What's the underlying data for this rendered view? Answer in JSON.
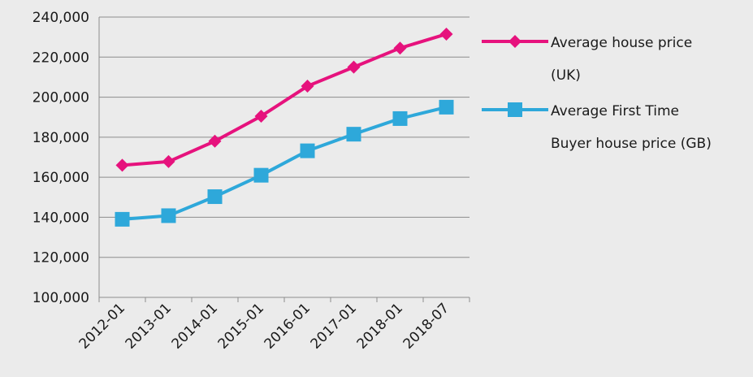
{
  "chart_data": {
    "type": "line",
    "title": "",
    "xlabel": "",
    "ylabel": "",
    "categories": [
      "2012-01",
      "2013-01",
      "2014-01",
      "2015-01",
      "2016-01",
      "2017-01",
      "2018-01",
      "2018-07"
    ],
    "ylim": [
      100000,
      240000
    ],
    "yticks": [
      "100,000",
      "120,000",
      "140,000",
      "160,000",
      "180,000",
      "200,000",
      "220,000",
      "240,000"
    ],
    "grid": "horizontal",
    "legend_position": "right",
    "series": [
      {
        "name_lines": [
          "Average house price",
          "(UK)"
        ],
        "color": "#e6127d",
        "marker": "diamond",
        "values": [
          166000,
          167800,
          178000,
          190500,
          205500,
          215000,
          224500,
          231500
        ]
      },
      {
        "name_lines": [
          "Average First Time",
          "Buyer house price (GB)"
        ],
        "color": "#2ea8da",
        "marker": "square",
        "values": [
          139000,
          140800,
          150300,
          161000,
          173200,
          181500,
          189300,
          195000
        ]
      }
    ]
  }
}
